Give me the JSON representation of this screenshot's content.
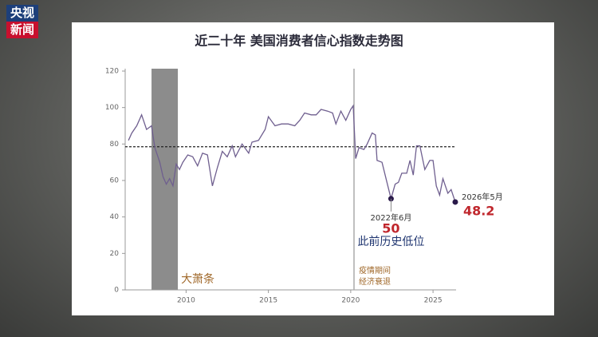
{
  "logo": {
    "line1": "央视",
    "line2": "新闻"
  },
  "chart_data": {
    "type": "line",
    "title": "近二十年 美国消费者信心指数走势图",
    "xlim": [
      2006.3,
      2026.4
    ],
    "xticks": [
      2010,
      2015,
      2020,
      2025
    ],
    "ylim": [
      0,
      120
    ],
    "yticks": [
      0,
      20,
      40,
      60,
      80,
      100,
      120
    ],
    "reference_line": 78.5,
    "shaded_regions": [
      {
        "x": [
          2007.9,
          2009.5
        ],
        "label": "大萧条"
      }
    ],
    "vertical_lines": [
      {
        "x": 2020.2,
        "label": [
          "疫情期间",
          "经济衰退"
        ]
      }
    ],
    "series": [
      {
        "color": "#6f5f8f",
        "x": [
          2006.5,
          2006.7,
          2007.0,
          2007.3,
          2007.6,
          2007.9,
          2008.1,
          2008.4,
          2008.6,
          2008.8,
          2009.0,
          2009.2,
          2009.4,
          2009.6,
          2009.8,
          2010.1,
          2010.4,
          2010.7,
          2011.0,
          2011.3,
          2011.6,
          2011.9,
          2012.2,
          2012.5,
          2012.8,
          2013.0,
          2013.4,
          2013.8,
          2014.0,
          2014.4,
          2014.8,
          2015.0,
          2015.4,
          2015.8,
          2016.2,
          2016.6,
          2016.9,
          2017.2,
          2017.6,
          2017.9,
          2018.2,
          2018.6,
          2018.9,
          2019.1,
          2019.4,
          2019.7,
          2020.0,
          2020.15,
          2020.3,
          2020.5,
          2020.8,
          2021.0,
          2021.3,
          2021.5,
          2021.6,
          2021.9,
          2022.2,
          2022.45,
          2022.7,
          2022.9,
          2023.1,
          2023.4,
          2023.6,
          2023.8,
          2024.0,
          2024.2,
          2024.5,
          2024.8,
          2025.0,
          2025.2,
          2025.4,
          2025.6,
          2025.9,
          2026.1,
          2026.35
        ],
        "values": [
          82,
          86,
          90,
          96,
          88,
          90,
          78,
          70,
          62,
          58,
          61,
          57,
          69,
          66,
          70,
          74,
          73,
          68,
          75,
          74,
          57,
          67,
          76,
          73,
          79,
          73,
          80,
          75,
          81,
          82,
          88,
          95,
          90,
          91,
          91,
          90,
          93,
          97,
          96,
          96,
          99,
          98,
          97,
          91,
          98,
          93,
          99,
          101,
          72,
          78,
          77,
          80,
          86,
          85,
          71,
          70,
          59,
          50,
          58,
          59,
          64,
          64,
          71,
          63,
          79,
          79,
          66,
          71,
          71,
          57,
          52,
          61,
          53,
          55,
          48.2
        ]
      }
    ],
    "annotations": [
      {
        "x": 2022.45,
        "date": "2022年6月",
        "value": 50,
        "note": "此前历史低位"
      },
      {
        "x": 2026.35,
        "date": "2026年5月",
        "value": 48.2
      }
    ]
  }
}
